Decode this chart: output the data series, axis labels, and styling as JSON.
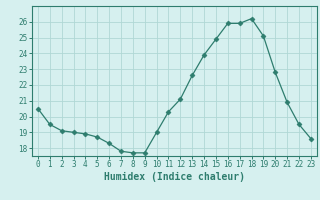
{
  "x": [
    0,
    1,
    2,
    3,
    4,
    5,
    6,
    7,
    8,
    9,
    10,
    11,
    12,
    13,
    14,
    15,
    16,
    17,
    18,
    19,
    20,
    21,
    22,
    23
  ],
  "y": [
    20.5,
    19.5,
    19.1,
    19.0,
    18.9,
    18.7,
    18.3,
    17.8,
    17.7,
    17.7,
    19.0,
    20.3,
    21.1,
    22.6,
    23.9,
    24.9,
    25.9,
    25.9,
    26.2,
    25.1,
    22.8,
    20.9,
    19.5,
    18.6
  ],
  "line_color": "#2e7d6e",
  "marker": "D",
  "marker_size": 2.5,
  "bg_color": "#d6f0ef",
  "grid_color": "#b0d8d5",
  "xlabel": "Humidex (Indice chaleur)",
  "ylim": [
    17.5,
    27.0
  ],
  "xlim": [
    -0.5,
    23.5
  ],
  "yticks": [
    18,
    19,
    20,
    21,
    22,
    23,
    24,
    25,
    26
  ],
  "xticks": [
    0,
    1,
    2,
    3,
    4,
    5,
    6,
    7,
    8,
    9,
    10,
    11,
    12,
    13,
    14,
    15,
    16,
    17,
    18,
    19,
    20,
    21,
    22,
    23
  ],
  "tick_fontsize": 5.5,
  "label_fontsize": 7.0
}
